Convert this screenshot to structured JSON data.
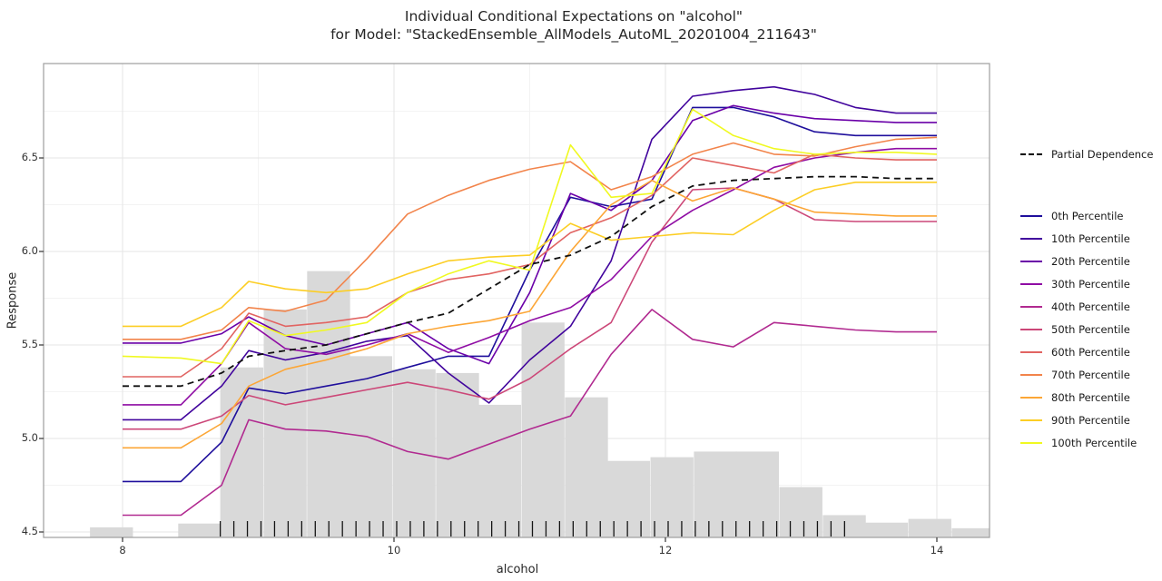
{
  "title": {
    "line1": "Individual Conditional Expectations on \"alcohol\"",
    "line2": "for Model: \"StackedEnsemble_AllModels_AutoML_20201004_211643\""
  },
  "axes": {
    "x": {
      "label": "alcohol",
      "ticks": [
        {
          "label": "8",
          "value": 8
        },
        {
          "label": "10",
          "value": 10
        },
        {
          "label": "12",
          "value": 12
        },
        {
          "label": "14",
          "value": 14
        }
      ],
      "minor": [
        9,
        11,
        13
      ]
    },
    "y": {
      "label": "Response",
      "ticks": [
        {
          "label": "6.5",
          "value": 6.5
        },
        {
          "label": "6.0",
          "value": 6.0
        },
        {
          "label": "5.5",
          "value": 5.5
        },
        {
          "label": "5.0",
          "value": 5.0
        },
        {
          "label": "4.5",
          "value": 4.5
        }
      ],
      "minor": [
        4.75,
        5.25,
        5.75,
        6.25,
        6.75
      ]
    }
  },
  "legend": {
    "pd": {
      "label": "Partial Dependence",
      "color": "#000000"
    },
    "items": [
      {
        "label": "0th Percentile",
        "color": "#1f0f9c"
      },
      {
        "label": "10th Percentile",
        "color": "#41049d"
      },
      {
        "label": "20th Percentile",
        "color": "#6a00a8"
      },
      {
        "label": "30th Percentile",
        "color": "#8f0da4"
      },
      {
        "label": "40th Percentile",
        "color": "#b12a90"
      },
      {
        "label": "50th Percentile",
        "color": "#cc4778"
      },
      {
        "label": "60th Percentile",
        "color": "#e16462"
      },
      {
        "label": "70th Percentile",
        "color": "#f2844b"
      },
      {
        "label": "80th Percentile",
        "color": "#fca636"
      },
      {
        "label": "90th Percentile",
        "color": "#fcce25"
      },
      {
        "label": "100th Percentile",
        "color": "#f0f921"
      }
    ]
  },
  "chart_data": {
    "type": "line",
    "title": "Individual Conditional Expectations on \"alcohol\" for Model: \"StackedEnsemble_AllModels_AutoML_20201004_211643\"",
    "xlabel": "alcohol",
    "ylabel": "Response",
    "xlim": [
      7.42,
      14.4
    ],
    "ylim": [
      4.47,
      7.0
    ],
    "x": [
      8.0,
      8.43,
      8.73,
      8.93,
      9.2,
      9.5,
      9.8,
      10.1,
      10.4,
      10.7,
      11.0,
      11.3,
      11.6,
      11.9,
      12.2,
      12.5,
      12.8,
      13.1,
      13.4,
      13.7,
      14.0
    ],
    "series": [
      {
        "name": "0th Percentile",
        "color": "#1f0f9c",
        "values": [
          4.77,
          4.77,
          4.98,
          5.27,
          5.24,
          5.28,
          5.32,
          5.38,
          5.44,
          5.44,
          5.9,
          6.29,
          6.24,
          6.28,
          6.77,
          6.77,
          6.72,
          6.64,
          6.62,
          6.62,
          6.62
        ]
      },
      {
        "name": "10th Percentile",
        "color": "#41049d",
        "values": [
          5.1,
          5.1,
          5.28,
          5.47,
          5.42,
          5.46,
          5.52,
          5.55,
          5.35,
          5.19,
          5.42,
          5.6,
          5.95,
          6.6,
          6.83,
          6.86,
          6.88,
          6.84,
          6.77,
          6.74,
          6.74
        ]
      },
      {
        "name": "20th Percentile",
        "color": "#6a00a8",
        "values": [
          5.51,
          5.51,
          5.56,
          5.65,
          5.55,
          5.5,
          5.56,
          5.62,
          5.48,
          5.4,
          5.78,
          6.31,
          6.22,
          6.38,
          6.7,
          6.78,
          6.74,
          6.71,
          6.7,
          6.69,
          6.69
        ]
      },
      {
        "name": "30th Percentile",
        "color": "#8f0da4",
        "values": [
          5.18,
          5.18,
          5.4,
          5.62,
          5.48,
          5.45,
          5.5,
          5.56,
          5.46,
          5.54,
          5.63,
          5.7,
          5.85,
          6.08,
          6.22,
          6.33,
          6.45,
          6.5,
          6.53,
          6.55,
          6.55
        ]
      },
      {
        "name": "40th Percentile",
        "color": "#b12a90",
        "values": [
          4.59,
          4.59,
          4.75,
          5.1,
          5.05,
          5.04,
          5.01,
          4.93,
          4.89,
          4.97,
          5.05,
          5.12,
          5.45,
          5.69,
          5.53,
          5.49,
          5.62,
          5.6,
          5.58,
          5.57,
          5.57
        ]
      },
      {
        "name": "50th Percentile",
        "color": "#cc4778",
        "values": [
          5.05,
          5.05,
          5.12,
          5.23,
          5.18,
          5.22,
          5.26,
          5.3,
          5.26,
          5.21,
          5.32,
          5.48,
          5.62,
          6.05,
          6.33,
          6.34,
          6.28,
          6.17,
          6.16,
          6.16,
          6.16
        ]
      },
      {
        "name": "60th Percentile",
        "color": "#e16462",
        "values": [
          5.33,
          5.33,
          5.48,
          5.67,
          5.6,
          5.62,
          5.65,
          5.78,
          5.85,
          5.88,
          5.93,
          6.1,
          6.18,
          6.3,
          6.5,
          6.46,
          6.42,
          6.52,
          6.5,
          6.49,
          6.49
        ]
      },
      {
        "name": "70th Percentile",
        "color": "#f2844b",
        "values": [
          5.53,
          5.53,
          5.58,
          5.7,
          5.68,
          5.74,
          5.96,
          6.2,
          6.3,
          6.38,
          6.44,
          6.48,
          6.33,
          6.4,
          6.52,
          6.58,
          6.52,
          6.51,
          6.56,
          6.6,
          6.61
        ]
      },
      {
        "name": "80th Percentile",
        "color": "#fca636",
        "values": [
          4.95,
          4.95,
          5.08,
          5.28,
          5.37,
          5.42,
          5.48,
          5.56,
          5.6,
          5.63,
          5.68,
          6.0,
          6.25,
          6.38,
          6.27,
          6.34,
          6.28,
          6.21,
          6.2,
          6.19,
          6.19
        ]
      },
      {
        "name": "90th Percentile",
        "color": "#fcce25",
        "values": [
          5.6,
          5.6,
          5.7,
          5.84,
          5.8,
          5.78,
          5.8,
          5.88,
          5.95,
          5.97,
          5.98,
          6.15,
          6.06,
          6.08,
          6.1,
          6.09,
          6.22,
          6.33,
          6.37,
          6.37,
          6.37
        ]
      },
      {
        "name": "100th Percentile",
        "color": "#f0f921",
        "values": [
          5.44,
          5.43,
          5.4,
          5.63,
          5.55,
          5.58,
          5.62,
          5.78,
          5.88,
          5.95,
          5.9,
          6.57,
          6.29,
          6.31,
          6.76,
          6.62,
          6.55,
          6.52,
          6.53,
          6.53,
          6.52
        ]
      },
      {
        "name": "Partial Dependence",
        "color": "#111111",
        "dashed": true,
        "values": [
          5.28,
          5.28,
          5.35,
          5.44,
          5.47,
          5.5,
          5.56,
          5.62,
          5.67,
          5.8,
          5.93,
          5.98,
          6.08,
          6.24,
          6.35,
          6.38,
          6.39,
          6.4,
          6.4,
          6.39,
          6.39
        ]
      }
    ],
    "histogram": {
      "color": "#d9d9d9",
      "bin_width": 0.3165,
      "bars": [
        {
          "x": 7.76,
          "top": 4.525
        },
        {
          "x": 8.41,
          "top": 4.545
        },
        {
          "x": 8.72,
          "top": 5.38
        },
        {
          "x": 9.04,
          "top": 5.69
        },
        {
          "x": 9.36,
          "top": 5.895
        },
        {
          "x": 9.67,
          "top": 5.44
        },
        {
          "x": 9.99,
          "top": 5.37
        },
        {
          "x": 10.31,
          "top": 5.35
        },
        {
          "x": 10.62,
          "top": 5.18
        },
        {
          "x": 10.94,
          "top": 5.62
        },
        {
          "x": 11.26,
          "top": 5.22
        },
        {
          "x": 11.57,
          "top": 4.88
        },
        {
          "x": 11.89,
          "top": 4.9
        },
        {
          "x": 12.21,
          "top": 4.93
        },
        {
          "x": 12.52,
          "top": 4.93
        },
        {
          "x": 12.84,
          "top": 4.74
        },
        {
          "x": 13.16,
          "top": 4.59
        },
        {
          "x": 13.47,
          "top": 4.55
        },
        {
          "x": 13.79,
          "top": 4.57
        },
        {
          "x": 14.11,
          "top": 4.52
        }
      ]
    },
    "rug": [
      8.72,
      8.82,
      8.92,
      9.02,
      9.12,
      9.22,
      9.32,
      9.42,
      9.52,
      9.62,
      9.72,
      9.82,
      9.92,
      10.02,
      10.12,
      10.22,
      10.32,
      10.42,
      10.52,
      10.62,
      10.72,
      10.82,
      10.92,
      11.02,
      11.12,
      11.22,
      11.32,
      11.42,
      11.52,
      11.62,
      11.72,
      11.82,
      11.92,
      12.02,
      12.12,
      12.22,
      12.32,
      12.42,
      12.52,
      12.62,
      12.72,
      12.82,
      12.92,
      13.02,
      13.12,
      13.22,
      13.32
    ],
    "legend_position": "right",
    "grid": true
  }
}
